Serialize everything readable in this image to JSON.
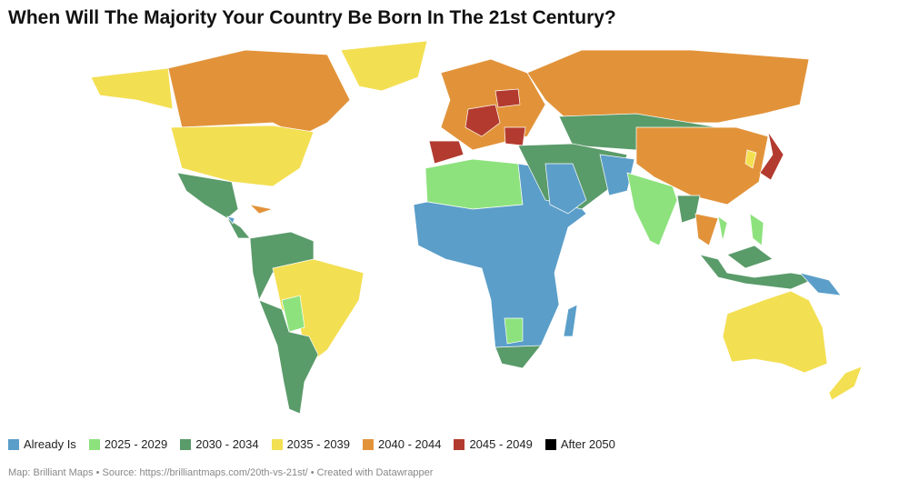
{
  "title": "When Will The Majority Your Country Be Born In The 21st Century?",
  "legend": [
    {
      "label": "Already Is",
      "color": "#5b9ec9"
    },
    {
      "label": "2025 - 2029",
      "color": "#8de27d"
    },
    {
      "label": "2030 - 2034",
      "color": "#5a9b6a"
    },
    {
      "label": "2035 - 2039",
      "color": "#f3df52"
    },
    {
      "label": "2040 - 2044",
      "color": "#e2933a"
    },
    {
      "label": "2045 - 2049",
      "color": "#b33a2f"
    },
    {
      "label": "After 2050",
      "color": "#000000"
    }
  ],
  "footer": "Map: Brilliant Maps • Source: https://brilliantmaps.com/20th-vs-21st/ • Created with Datawrapper"
}
